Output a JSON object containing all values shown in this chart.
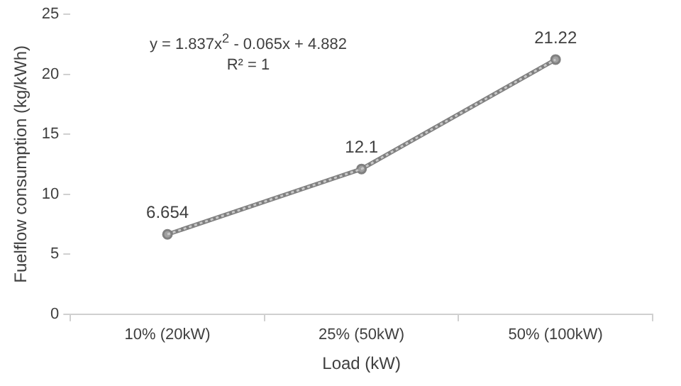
{
  "chart_data": {
    "type": "line",
    "xlabel": "Load (kW)",
    "ylabel": "Fuelflow consumption (kg/kWh)",
    "categories": [
      "10% (20kW)",
      "25% (50kW)",
      "50% (100kW)"
    ],
    "series": [
      {
        "color": "#808080",
        "values": [
          6.654,
          12.1,
          21.22
        ],
        "marker": "circle",
        "line_style": "solid",
        "data_labels": true
      },
      {
        "type": "line",
        "color": "#c8c8c8",
        "values": [
          6.654,
          12.1,
          21.22
        ],
        "marker": "none",
        "line_style": "dotted"
      }
    ],
    "ylim": [
      0,
      25
    ],
    "yticks": [
      0,
      5,
      10,
      15,
      20,
      25
    ],
    "grid": false,
    "legend": false,
    "annotations": [
      "y = 1.837x$^{2}$ - 0.065x + 4.882",
      "R² = 1"
    ]
  }
}
